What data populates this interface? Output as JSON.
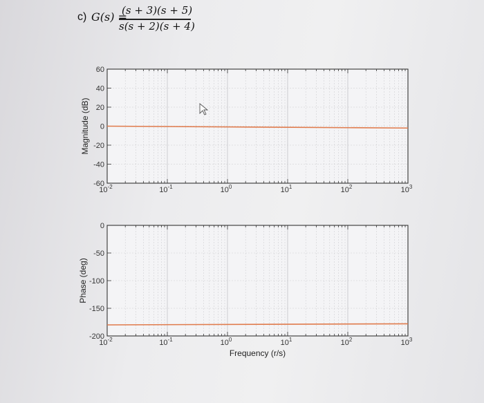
{
  "header": {
    "part_label": "c)",
    "lhs": "G(s) =",
    "numerator": "(s + 3)(s + 5)",
    "denominator": "s(s + 2)(s + 4)"
  },
  "colors": {
    "curve": "#e07a4b",
    "axis": "#333333",
    "grid": "#c9c9cc"
  },
  "chart_data": [
    {
      "type": "line",
      "xscale": "log",
      "xlim": [
        0.01,
        1000
      ],
      "ylim": [
        -60,
        60
      ],
      "xticks": [
        0.01,
        0.1,
        1,
        10,
        100,
        1000
      ],
      "xtick_labels": [
        {
          "base": "10",
          "exp": "-2"
        },
        {
          "base": "10",
          "exp": "-1"
        },
        {
          "base": "10",
          "exp": "0"
        },
        {
          "base": "10",
          "exp": "1"
        },
        {
          "base": "10",
          "exp": "2"
        },
        {
          "base": "10",
          "exp": "3"
        }
      ],
      "yticks": [
        60,
        40,
        20,
        0,
        -20,
        -40,
        -60
      ],
      "ylabel": "Magnitude (dB)",
      "xlabel": "",
      "grid": true,
      "series": [
        {
          "x": [
            0.01,
            1000
          ],
          "y": [
            0,
            -2
          ]
        }
      ]
    },
    {
      "type": "line",
      "xscale": "log",
      "xlim": [
        0.01,
        1000
      ],
      "ylim": [
        -200,
        0
      ],
      "xticks": [
        0.01,
        0.1,
        1,
        10,
        100,
        1000
      ],
      "xtick_labels": [
        {
          "base": "10",
          "exp": "-2"
        },
        {
          "base": "10",
          "exp": "-1"
        },
        {
          "base": "10",
          "exp": "0"
        },
        {
          "base": "10",
          "exp": "1"
        },
        {
          "base": "10",
          "exp": "2"
        },
        {
          "base": "10",
          "exp": "3"
        }
      ],
      "yticks": [
        0,
        -50,
        -100,
        -150,
        -200
      ],
      "ylabel": "Phase (deg)",
      "xlabel": "Frequency (r/s)",
      "grid": true,
      "series": [
        {
          "x": [
            0.01,
            1000
          ],
          "y": [
            -180,
            -178
          ]
        }
      ]
    }
  ]
}
